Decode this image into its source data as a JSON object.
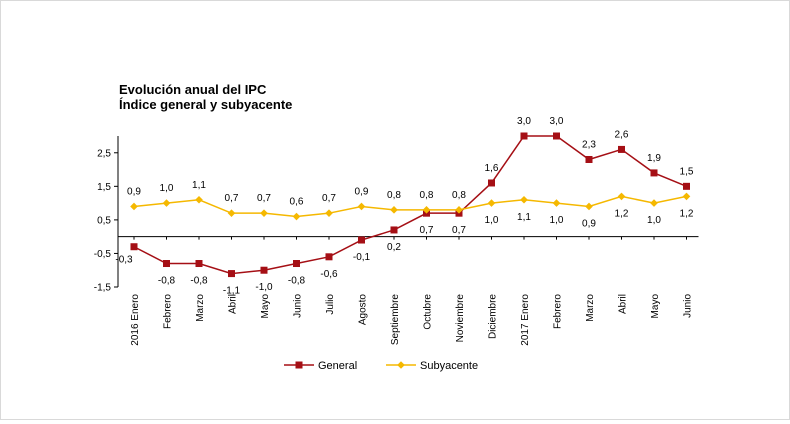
{
  "chart_data": {
    "type": "line",
    "title": "Evolución anual del IPC",
    "subtitle": "Índice general y subyacente",
    "xlabel": "",
    "ylabel": "",
    "ylim": [
      -1.5,
      3.0
    ],
    "yticks": [
      -1.5,
      -0.5,
      0.5,
      1.5,
      2.5
    ],
    "ytick_labels": [
      "-1,5",
      "-0,5",
      "0,5",
      "1,5",
      "2,5"
    ],
    "categories": [
      "2016 Enero",
      "Febrero",
      "Marzo",
      "Abril",
      "Mayo",
      "Junio",
      "Julio",
      "Agosto",
      "Septiembre",
      "Octubre",
      "Noviembre",
      "Diciembre",
      "2017 Enero",
      "Febrero",
      "Marzo",
      "Abril",
      "Mayo",
      "Junio"
    ],
    "grid": false,
    "legend_position": "bottom",
    "series": [
      {
        "name": "General",
        "color": "#a50f15",
        "marker": "square",
        "values": [
          -0.3,
          -0.8,
          -0.8,
          -1.1,
          -1.0,
          -0.8,
          -0.6,
          -0.1,
          0.2,
          0.7,
          0.7,
          1.6,
          3.0,
          3.0,
          2.3,
          2.6,
          1.9,
          1.5
        ],
        "labels": [
          "-0,3",
          "-0,8",
          "-0,8",
          "-1,1",
          "-1,0",
          "-0,8",
          "-0,6",
          "-0,1",
          "0,2",
          "0,7",
          "0,7",
          "1,6",
          "3,0",
          "3,0",
          "2,3",
          "2,6",
          "1,9",
          "1,5"
        ]
      },
      {
        "name": "Subyacente",
        "color": "#f5b800",
        "marker": "diamond",
        "values": [
          0.9,
          1.0,
          1.1,
          0.7,
          0.7,
          0.6,
          0.7,
          0.9,
          0.8,
          0.8,
          0.8,
          1.0,
          1.1,
          1.0,
          0.9,
          1.2,
          1.0,
          1.2
        ],
        "labels": [
          "0,9",
          "1,0",
          "1,1",
          "0,7",
          "0,7",
          "0,6",
          "0,7",
          "0,9",
          "0,8",
          "0,8",
          "0,8",
          "1,0",
          "1,1",
          "1,0",
          "0,9",
          "1,2",
          "1,0",
          "1,2"
        ]
      }
    ]
  }
}
